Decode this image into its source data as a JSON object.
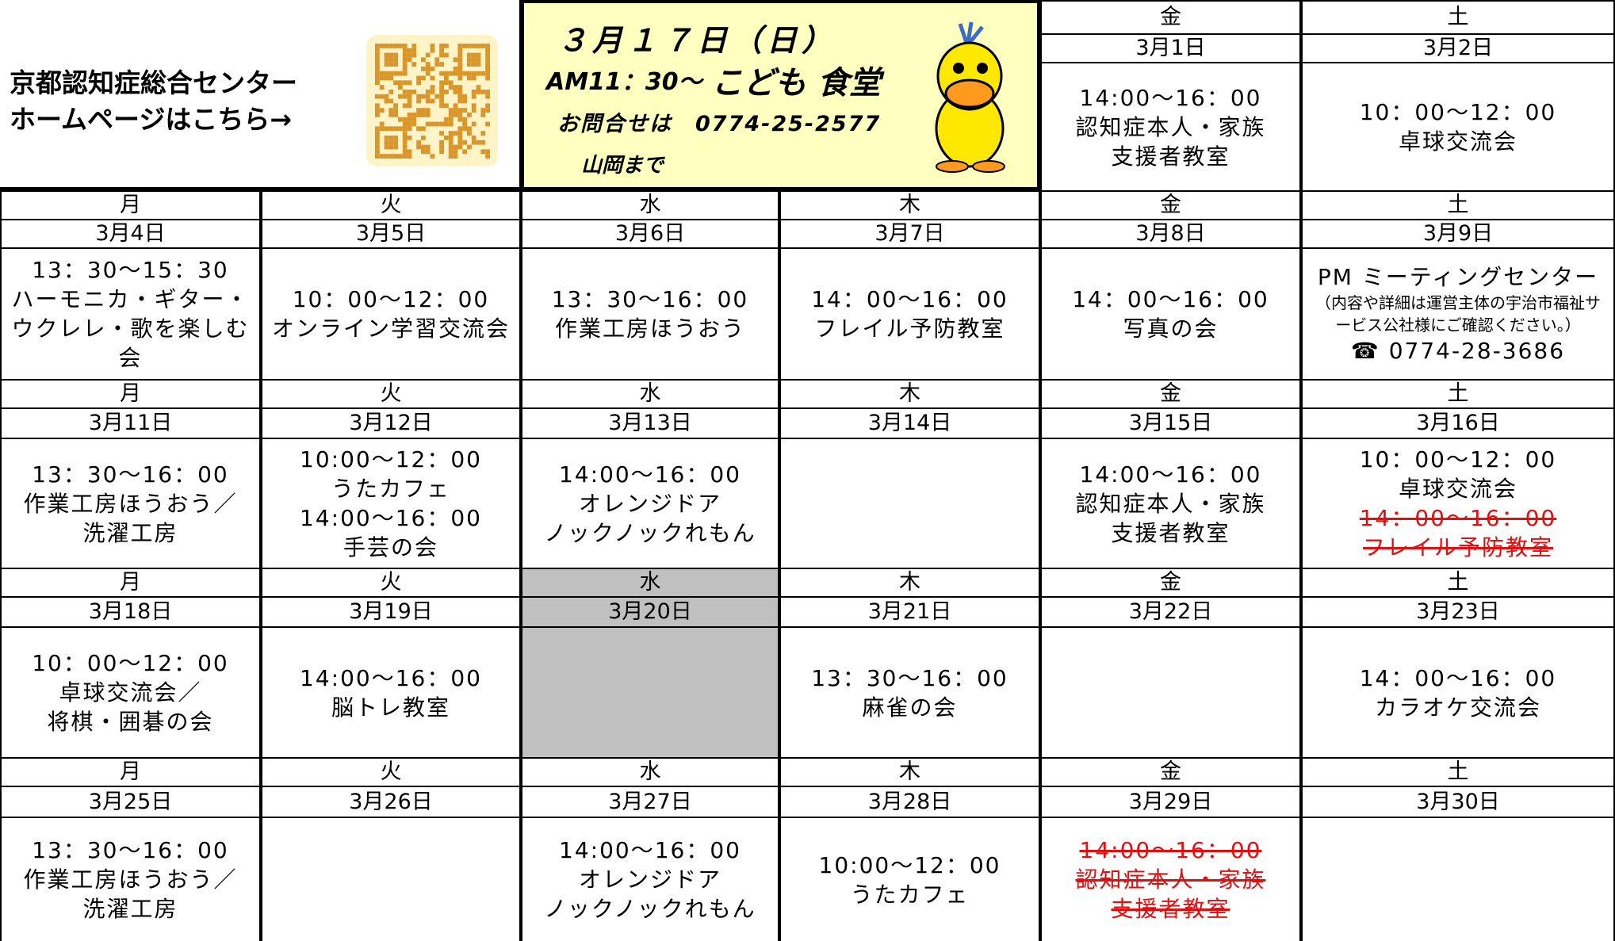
{
  "header": {
    "homepage_text": [
      "京都認知症総合センター",
      "ホームページはこちら→"
    ],
    "event": {
      "date": "３月１７日（日）",
      "time": "AM11：30～",
      "title": "こども 食堂",
      "contact": "お問合せは　0774-25-2577",
      "person": "山岡まで"
    }
  },
  "weeks": [
    {
      "days": [
        {
          "weekday": "金",
          "date": "3月1日",
          "lines": [
            "14:00～16：00",
            "認知症本人・家族",
            "支援者教室"
          ]
        },
        {
          "weekday": "土",
          "date": "3月2日",
          "lines": [
            "10：00～12：00",
            "卓球交流会"
          ]
        }
      ]
    },
    {
      "days": [
        {
          "weekday": "月",
          "date": "3月4日",
          "lines": [
            "13：30～15：30",
            "ハーモニカ・ギター・",
            "ウクレレ・歌を楽しむ",
            "会"
          ]
        },
        {
          "weekday": "火",
          "date": "3月5日",
          "lines": [
            "10：00～12：00",
            "オンライン学習交流会"
          ]
        },
        {
          "weekday": "水",
          "date": "3月6日",
          "lines": [
            "13：30～16：00",
            "作業工房ほうおう"
          ]
        },
        {
          "weekday": "木",
          "date": "3月7日",
          "lines": [
            "14：00～16：00",
            "フレイル予防教室"
          ]
        },
        {
          "weekday": "金",
          "date": "3月8日",
          "lines": [
            "14：00～16：00",
            "写真の会"
          ]
        },
        {
          "weekday": "土",
          "date": "3月9日",
          "lines": [
            "PM ミーティングセンター",
            "（内容や詳細は運営主体の宇治市福祉サ",
            "ービス公社様にご確認ください。）",
            "☎ 0774-28-3686"
          ]
        }
      ]
    },
    {
      "days": [
        {
          "weekday": "月",
          "date": "3月11日",
          "lines": [
            "13：30～16：00",
            "作業工房ほうおう／",
            "洗濯工房"
          ]
        },
        {
          "weekday": "火",
          "date": "3月12日",
          "lines": [
            "10:00～12：00",
            "うたカフェ",
            "14:00～16：00",
            "手芸の会"
          ]
        },
        {
          "weekday": "水",
          "date": "3月13日",
          "lines": [
            "14:00～16：00",
            "オレンジドア",
            "ノックノックれもん"
          ]
        },
        {
          "weekday": "木",
          "date": "3月14日",
          "lines": []
        },
        {
          "weekday": "金",
          "date": "3月15日",
          "lines": [
            "14:00～16：00",
            "認知症本人・家族",
            "支援者教室"
          ]
        },
        {
          "weekday": "土",
          "date": "3月16日",
          "lines": [
            "10：00～12：00",
            "卓球交流会",
            "14：00～16：00",
            "フレイル予防教室"
          ]
        }
      ]
    },
    {
      "days": [
        {
          "weekday": "月",
          "date": "3月18日",
          "lines": [
            "10：00～12：00",
            "卓球交流会／",
            "将棋・囲碁の会"
          ]
        },
        {
          "weekday": "火",
          "date": "3月19日",
          "lines": [
            "14:00～16：00",
            "脳トレ教室"
          ]
        },
        {
          "weekday": "水",
          "date": "3月20日",
          "lines": []
        },
        {
          "weekday": "木",
          "date": "3月21日",
          "lines": [
            "13：30～16：00",
            "麻雀の会"
          ]
        },
        {
          "weekday": "金",
          "date": "3月22日",
          "lines": []
        },
        {
          "weekday": "土",
          "date": "3月23日",
          "lines": [
            "14：00～16：00",
            "カラオケ交流会"
          ]
        }
      ]
    },
    {
      "days": [
        {
          "weekday": "月",
          "date": "3月25日",
          "lines": [
            "13：30～16：00",
            "作業工房ほうおう／",
            "洗濯工房"
          ]
        },
        {
          "weekday": "火",
          "date": "3月26日",
          "lines": []
        },
        {
          "weekday": "水",
          "date": "3月27日",
          "lines": [
            "14:00～16：00",
            "オレンジドア",
            "ノックノックれもん"
          ]
        },
        {
          "weekday": "木",
          "date": "3月28日",
          "lines": [
            "10:00～12：00",
            "うたカフェ"
          ]
        },
        {
          "weekday": "金",
          "date": "3月29日",
          "lines": [
            "14:00～16：00",
            "認知症本人・家族",
            "支援者教室"
          ]
        },
        {
          "weekday": "土",
          "date": "3月30日",
          "lines": []
        }
      ]
    }
  ]
}
